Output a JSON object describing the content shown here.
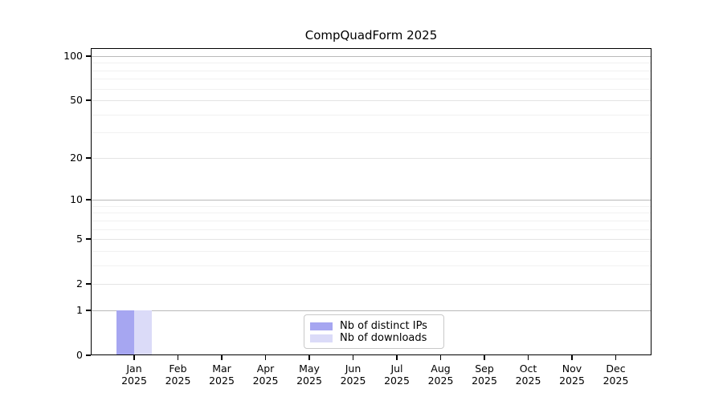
{
  "title": "CompQuadForm 2025",
  "colors": {
    "distinct_ips": "#a6a6f1",
    "downloads": "#dbdbf8",
    "grid_decade": "#b9b9b9",
    "grid_labeled": "#e4e4e4",
    "grid_minor": "#f1f1f1",
    "axis_frame": "#000000",
    "legend_border": "#c9c9c9",
    "background": "#ffffff"
  },
  "legend": {
    "items": [
      {
        "label": "Nb of distinct IPs",
        "color_key": "distinct_ips"
      },
      {
        "label": "Nb of downloads",
        "color_key": "downloads"
      }
    ]
  },
  "chart_data": {
    "type": "bar",
    "title": "CompQuadForm 2025",
    "categories": [
      {
        "month": "Jan",
        "year": "2025"
      },
      {
        "month": "Feb",
        "year": "2025"
      },
      {
        "month": "Mar",
        "year": "2025"
      },
      {
        "month": "Apr",
        "year": "2025"
      },
      {
        "month": "May",
        "year": "2025"
      },
      {
        "month": "Jun",
        "year": "2025"
      },
      {
        "month": "Jul",
        "year": "2025"
      },
      {
        "month": "Aug",
        "year": "2025"
      },
      {
        "month": "Sep",
        "year": "2025"
      },
      {
        "month": "Oct",
        "year": "2025"
      },
      {
        "month": "Nov",
        "year": "2025"
      },
      {
        "month": "Dec",
        "year": "2025"
      }
    ],
    "series": [
      {
        "name": "Nb of distinct IPs",
        "color_key": "distinct_ips",
        "values": [
          1,
          0,
          0,
          0,
          0,
          0,
          0,
          0,
          0,
          0,
          0,
          0
        ]
      },
      {
        "name": "Nb of downloads",
        "color_key": "downloads",
        "values": [
          1,
          0,
          0,
          0,
          0,
          0,
          0,
          0,
          0,
          0,
          0,
          0
        ]
      }
    ],
    "xlabel": "",
    "ylabel": "",
    "y_scale": "log10(1+y)",
    "y_ticks": [
      0,
      1,
      2,
      5,
      10,
      20,
      50,
      100
    ],
    "y_gridlines_decade": [
      1,
      10,
      100
    ],
    "y_gridlines_labeled": [
      2,
      5,
      20,
      50
    ],
    "y_gridlines_minor": [
      3,
      4,
      6,
      7,
      8,
      9,
      30,
      40,
      60,
      70,
      80,
      90
    ],
    "ylim": [
      0,
      113
    ],
    "grid": "horizontal",
    "legend_position": "inside-bottom-center"
  }
}
